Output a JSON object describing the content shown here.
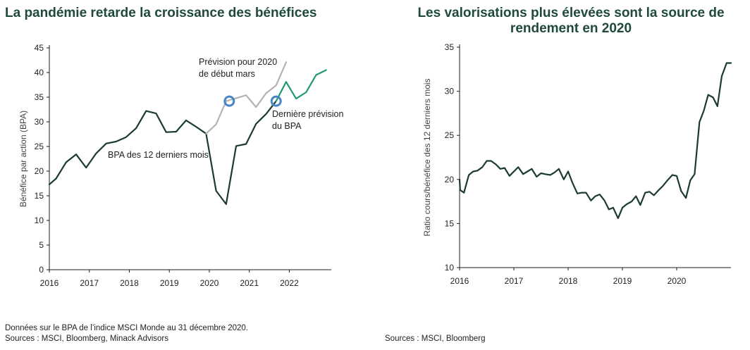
{
  "colors": {
    "title": "#1f4a3a",
    "dark_line": "#1b3b2f",
    "grey_line": "#b3b3b3",
    "green_line": "#1e9a72",
    "marker": "#4a86c5"
  },
  "chart_data": [
    {
      "type": "line",
      "title": "La pandémie retarde la croissance des bénéfices",
      "ylabel": "Bénéfice par action (BPA)",
      "ylim": [
        0,
        45
      ],
      "yticks": [
        0,
        5,
        10,
        15,
        20,
        25,
        30,
        35,
        40,
        45
      ],
      "xlim": [
        2016,
        2023.05
      ],
      "xticks": [
        "2016",
        "2017",
        "2018",
        "2019",
        "2020",
        "2021",
        "2022"
      ],
      "grid": false,
      "series": [
        {
          "name": "BPA des 12 derniers mois",
          "color": "#1b3b2f",
          "x": [
            2016.0,
            2016.17,
            2016.42,
            2016.67,
            2016.92,
            2017.17,
            2017.42,
            2017.67,
            2017.92,
            2018.17,
            2018.42,
            2018.67,
            2018.92,
            2019.17,
            2019.42,
            2019.67,
            2019.92,
            2020.17,
            2020.42,
            2020.67,
            2020.92,
            2021.17,
            2021.42,
            2021.67
          ],
          "y": [
            17.3,
            18.5,
            21.8,
            23.4,
            20.7,
            23.6,
            25.6,
            26.0,
            26.9,
            28.7,
            32.2,
            31.7,
            27.9,
            28.0,
            30.3,
            29.0,
            27.6,
            16.0,
            13.3,
            25.1,
            25.5,
            29.6,
            31.6,
            34.2
          ]
        },
        {
          "name": "Prévision pour 2020 de début mars",
          "color": "#b3b3b3",
          "x": [
            2019.92,
            2020.17,
            2020.42,
            2020.67,
            2020.92,
            2021.17,
            2021.42,
            2021.67,
            2021.92
          ],
          "y": [
            27.6,
            29.5,
            34.2,
            34.8,
            35.4,
            33.0,
            35.8,
            37.4,
            42.1
          ]
        },
        {
          "name": "Dernière prévision du BPA",
          "color": "#1e9a72",
          "x": [
            2021.67,
            2021.92,
            2022.17,
            2022.42,
            2022.67,
            2022.92
          ],
          "y": [
            34.2,
            38.1,
            34.7,
            36.0,
            39.5,
            40.5
          ]
        }
      ],
      "markers": [
        {
          "x": 2020.5,
          "y": 34.2
        },
        {
          "x": 2021.67,
          "y": 34.2
        }
      ],
      "annotations": {
        "forecast_line1": "Prévision pour 2020",
        "forecast_line2": "de début mars",
        "latest_line1": "Dernière prévision",
        "latest_line2": "du BPA",
        "trailing": "BPA des 12 derniers mois"
      }
    },
    {
      "type": "line",
      "title": "Les valorisations plus élevées sont la source de rendement en 2020",
      "ylabel": "Ratio cours/bénéfice des 12 derniers mois",
      "ylim": [
        10,
        35
      ],
      "yticks": [
        10,
        15,
        20,
        25,
        30,
        35
      ],
      "xlim": [
        2016,
        2021
      ],
      "xticks": [
        "2016",
        "2017",
        "2018",
        "2019",
        "2020"
      ],
      "grid": false,
      "series": [
        {
          "color": "#1b3b2f",
          "x": [
            2016.0,
            2016.01,
            2016.08,
            2016.17,
            2016.25,
            2016.33,
            2016.42,
            2016.5,
            2016.58,
            2016.67,
            2016.75,
            2016.83,
            2016.92,
            2017.0,
            2017.08,
            2017.17,
            2017.25,
            2017.33,
            2017.42,
            2017.5,
            2017.58,
            2017.67,
            2017.75,
            2017.83,
            2017.92,
            2018.0,
            2018.08,
            2018.17,
            2018.25,
            2018.33,
            2018.42,
            2018.5,
            2018.58,
            2018.67,
            2018.75,
            2018.83,
            2018.92,
            2019.0,
            2019.08,
            2019.17,
            2019.25,
            2019.33,
            2019.42,
            2019.5,
            2019.58,
            2019.67,
            2019.75,
            2019.83,
            2019.92,
            2020.0,
            2020.08,
            2020.17,
            2020.25,
            2020.33,
            2020.42,
            2020.5,
            2020.58,
            2020.67,
            2020.75,
            2020.83,
            2020.92,
            2021.0
          ],
          "y": [
            20.0,
            18.8,
            18.5,
            20.5,
            20.9,
            21.0,
            21.4,
            22.1,
            22.1,
            21.7,
            21.2,
            21.3,
            20.4,
            20.9,
            21.4,
            20.6,
            20.9,
            21.2,
            20.3,
            20.7,
            20.6,
            20.5,
            20.8,
            21.2,
            20.0,
            20.9,
            19.6,
            18.4,
            18.5,
            18.5,
            17.6,
            18.1,
            18.3,
            17.6,
            16.6,
            16.8,
            15.6,
            16.8,
            17.2,
            17.5,
            18.1,
            17.1,
            18.5,
            18.6,
            18.2,
            18.8,
            19.3,
            19.9,
            20.5,
            20.4,
            18.7,
            17.9,
            19.9,
            20.6,
            26.5,
            27.8,
            29.6,
            29.3,
            28.3,
            31.7,
            33.2,
            33.2
          ]
        }
      ]
    }
  ],
  "footnotes": {
    "left_line1": "Données sur le BPA de l’indice MSCI Monde au 31 décembre 2020.",
    "left_line2": "Sources : MSCI, Bloomberg, Minack Advisors",
    "right": "Sources : MSCI, Bloomberg"
  }
}
